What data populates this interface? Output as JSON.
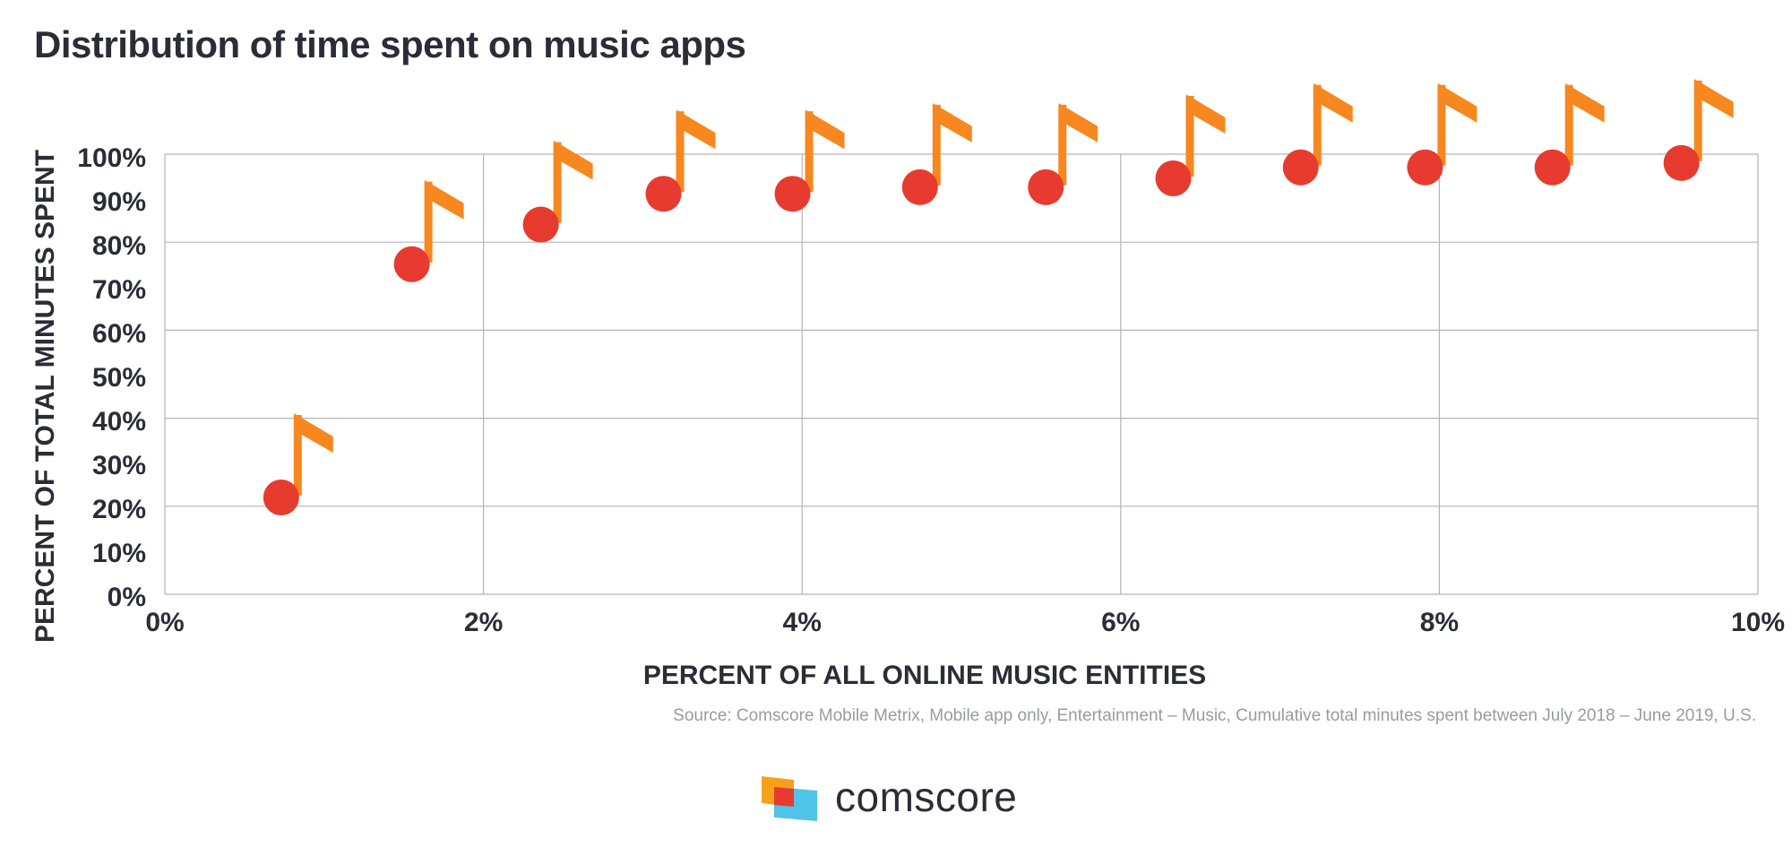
{
  "title": "Distribution of time spent on music apps",
  "source": "Source: Comscore Mobile Metrix, Mobile app only, Entertainment – Music, Cumulative total minutes spent between July 2018 – June 2019, U.S.",
  "logo_text": "comscore",
  "colors": {
    "point": "#e63b2e",
    "note_stem": "#f7871f",
    "grid": "#b5b5b5",
    "text": "#2b2d36",
    "logo_orange": "#f7a11a",
    "logo_red": "#e63b2e",
    "logo_blue": "#4fc3e8"
  },
  "chart_data": {
    "type": "scatter",
    "xlabel": "PERCENT OF ALL ONLINE MUSIC ENTITIES",
    "ylabel": "PERCENT OF TOTAL MINUTES SPENT",
    "xlim": [
      0,
      10
    ],
    "ylim": [
      0,
      100
    ],
    "x_ticks": [
      "0%",
      "2%",
      "4%",
      "6%",
      "8%",
      "10%"
    ],
    "y_ticks": [
      "0%",
      "10%",
      "20%",
      "30%",
      "40%",
      "50%",
      "60%",
      "70%",
      "80%",
      "90%",
      "100%"
    ],
    "grid": true,
    "marker": "music-note-icon",
    "x": [
      0.73,
      1.55,
      2.36,
      3.13,
      3.94,
      4.74,
      5.53,
      6.33,
      7.13,
      7.91,
      8.71,
      9.52
    ],
    "y": [
      22,
      75,
      84,
      91,
      91,
      92.5,
      92.5,
      94.5,
      97,
      97,
      97,
      98
    ]
  }
}
